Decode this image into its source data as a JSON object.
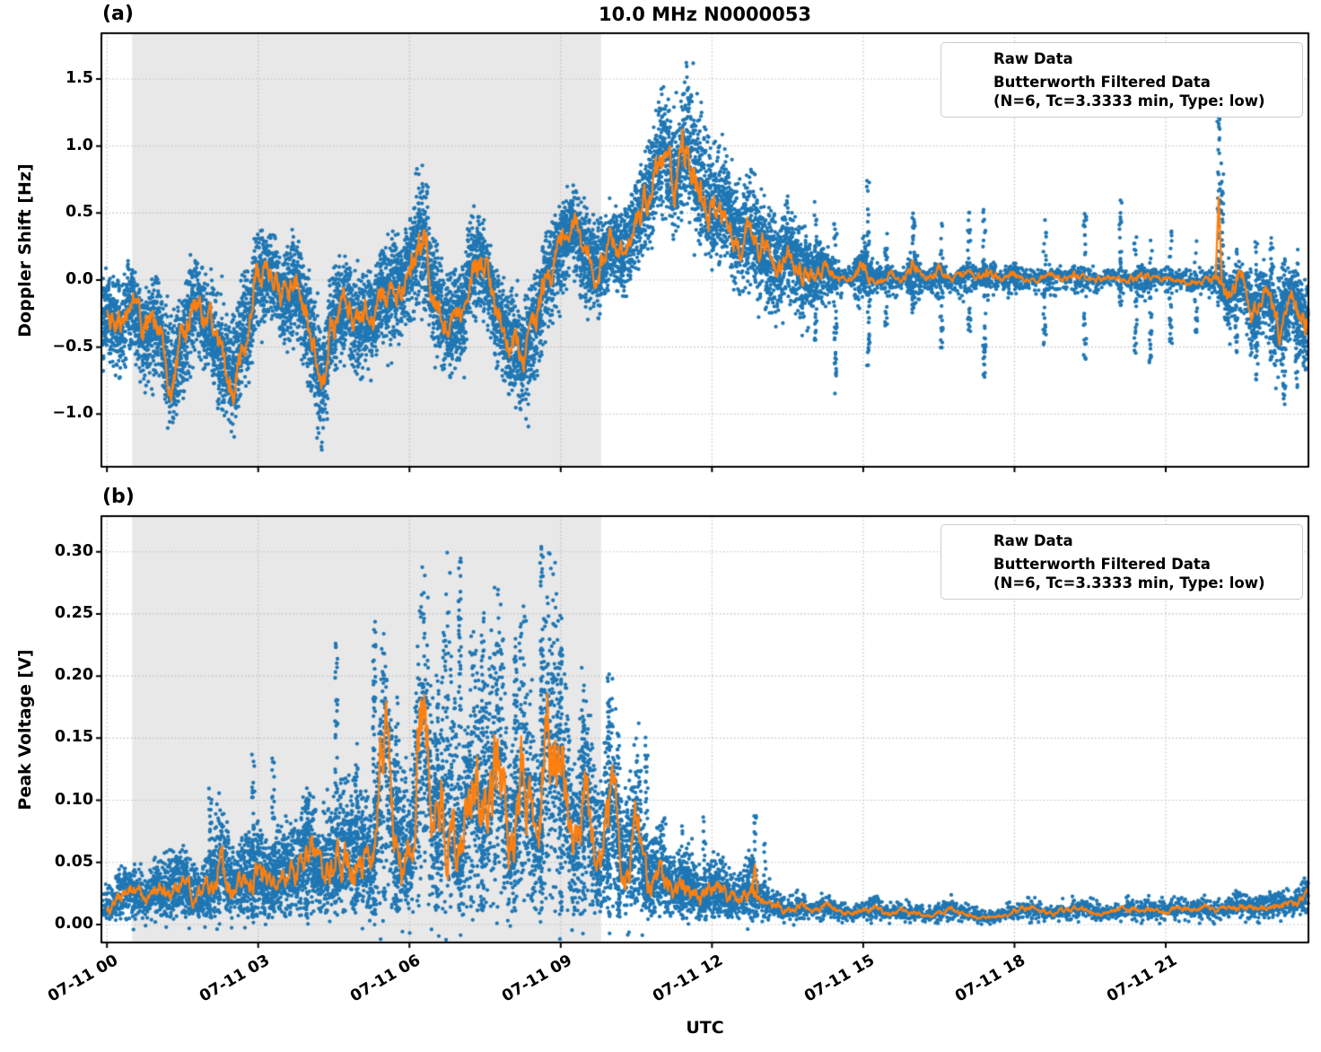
{
  "figure_title": "10.0 MHz N0000053",
  "x_axis": {
    "label": "UTC",
    "ticks": [
      {
        "t": 0,
        "label": "07-11 00"
      },
      {
        "t": 3,
        "label": "07-11 03"
      },
      {
        "t": 6,
        "label": "07-11 06"
      },
      {
        "t": 9,
        "label": "07-11 09"
      },
      {
        "t": 12,
        "label": "07-11 12"
      },
      {
        "t": 15,
        "label": "07-11 15"
      },
      {
        "t": 18,
        "label": "07-11 18"
      },
      {
        "t": 21,
        "label": "07-11 21"
      }
    ],
    "xlim_hours": [
      -0.11,
      23.83
    ],
    "shaded_region": {
      "t_start_h": 0.5,
      "t_end_h": 9.8
    }
  },
  "legend": {
    "raw_label": "Raw Data",
    "filtered_label_line1": "Butterworth Filtered Data",
    "filtered_label_line2": "(N=6, Tc=3.3333 min, Type: low)"
  },
  "colors": {
    "raw": "#1f77b4",
    "filtered": "#ff7f0e",
    "shaded": "#e8e8e8",
    "grid": "#b9b9b9",
    "spine": "#000000"
  },
  "chart_data": [
    {
      "type": "scatter",
      "panel_label": "(a)",
      "title": "10.0 MHz N0000053",
      "ylabel": "Doppler Shift [Hz]",
      "xlabel": "UTC",
      "ylim": [
        -1.393,
        1.842
      ],
      "yticks": [
        1.5,
        1.0,
        0.5,
        0.0,
        -0.5,
        -1.0
      ],
      "ytick_labels": [
        "1.5",
        "1.0",
        "0.5",
        "0.0",
        "−0.5",
        "−1.0"
      ],
      "grid": true,
      "legend_position": "upper right",
      "series_names": [
        "Raw Data",
        "Butterworth Filtered Data (N=6, Tc=3.3333 min, Type: low)"
      ],
      "t_start_h": 0,
      "t_step_h": 0.25,
      "filtered": [
        -0.22,
        -0.35,
        -0.12,
        -0.42,
        -0.3,
        -0.72,
        -0.45,
        -0.18,
        -0.35,
        -0.55,
        -0.74,
        -0.38,
        0.02,
        0.05,
        -0.12,
        -0.02,
        -0.35,
        -0.78,
        -0.28,
        -0.15,
        -0.34,
        -0.25,
        -0.14,
        -0.05,
        0.08,
        0.33,
        -0.12,
        -0.34,
        -0.28,
        0.12,
        0.08,
        -0.26,
        -0.44,
        -0.58,
        -0.28,
        0.05,
        0.26,
        0.44,
        0.18,
        0.08,
        0.28,
        0.2,
        0.42,
        0.62,
        0.93,
        0.75,
        0.95,
        0.68,
        0.46,
        0.55,
        0.3,
        0.36,
        0.22,
        0.1,
        0.2,
        0.08,
        0.04,
        0.1,
        0.02,
        0.01,
        0.12,
        0.01,
        0.04,
        0.0,
        0.1,
        0.0,
        0.06,
        0.01,
        0.04,
        0.02,
        0.05,
        0.01,
        0.05,
        0.0,
        0.01,
        0.03,
        0.01,
        0.04,
        0.0,
        0.01,
        0.02,
        0.0,
        0.04,
        0.01,
        0.02,
        0.0,
        -0.02,
        0.0,
        0.02,
        -0.12,
        0.02,
        -0.25,
        -0.08,
        -0.38,
        -0.12,
        -0.3,
        -0.18
      ],
      "raw_hi": [
        0.1,
        0.02,
        0.18,
        -0.05,
        0.05,
        -0.25,
        -0.05,
        0.22,
        0.05,
        -0.1,
        -0.25,
        0.1,
        0.38,
        0.4,
        0.25,
        0.35,
        0.05,
        -0.3,
        0.1,
        0.2,
        0.05,
        0.1,
        0.25,
        0.35,
        0.45,
        0.92,
        0.3,
        0.05,
        0.1,
        0.5,
        0.45,
        0.1,
        -0.05,
        -0.15,
        0.1,
        0.4,
        0.6,
        0.68,
        0.55,
        0.45,
        0.62,
        0.55,
        0.8,
        1.1,
        1.45,
        1.3,
        1.68,
        1.4,
        1.05,
        1.0,
        0.75,
        0.85,
        0.68,
        0.5,
        0.6,
        0.45,
        0.3,
        0.28,
        0.12,
        0.1,
        0.3,
        0.1,
        0.12,
        0.08,
        0.25,
        0.08,
        0.15,
        0.08,
        0.12,
        0.1,
        0.14,
        0.08,
        0.14,
        0.08,
        0.08,
        0.1,
        0.08,
        0.12,
        0.08,
        0.08,
        0.08,
        0.08,
        0.12,
        0.08,
        0.1,
        0.08,
        0.06,
        0.08,
        0.12,
        0.1,
        0.15,
        0.05,
        0.12,
        0.02,
        0.08,
        0.02,
        0.05
      ],
      "raw_lo": [
        -0.6,
        -0.75,
        -0.5,
        -0.85,
        -0.7,
        -1.15,
        -0.9,
        -0.55,
        -0.75,
        -1.0,
        -1.22,
        -0.85,
        -0.35,
        -0.3,
        -0.5,
        -0.45,
        -0.8,
        -1.27,
        -0.7,
        -0.55,
        -0.75,
        -0.65,
        -0.55,
        -0.45,
        -0.35,
        -0.2,
        -0.55,
        -0.75,
        -0.7,
        -0.3,
        -0.35,
        -0.7,
        -0.9,
        -1.1,
        -0.75,
        -0.4,
        -0.15,
        0.05,
        -0.25,
        -0.3,
        -0.05,
        -0.15,
        0.05,
        0.2,
        0.45,
        0.3,
        0.5,
        0.25,
        0.05,
        0.1,
        -0.15,
        -0.05,
        -0.2,
        -0.35,
        -0.15,
        -0.3,
        -0.25,
        -0.2,
        -0.12,
        -0.1,
        -0.25,
        -0.1,
        -0.12,
        -0.08,
        -0.2,
        -0.08,
        -0.15,
        -0.08,
        -0.14,
        -0.12,
        -0.16,
        -0.08,
        -0.12,
        -0.08,
        -0.08,
        -0.1,
        -0.08,
        -0.1,
        -0.08,
        -0.08,
        -0.08,
        -0.08,
        -0.14,
        -0.08,
        -0.1,
        -0.08,
        -0.1,
        -0.08,
        -0.12,
        -0.4,
        -0.25,
        -0.55,
        -0.35,
        -0.75,
        -0.45,
        -0.7,
        -0.5
      ],
      "spikes": [
        [
          14.05,
          -0.45,
          0.65
        ],
        [
          14.45,
          -0.85,
          0.45
        ],
        [
          15.1,
          -0.65,
          0.75
        ],
        [
          15.45,
          -0.35,
          0.35
        ],
        [
          16.0,
          -0.25,
          0.55
        ],
        [
          16.55,
          -0.55,
          0.45
        ],
        [
          17.1,
          -0.45,
          0.55
        ],
        [
          17.4,
          -0.75,
          0.6
        ],
        [
          18.6,
          -0.5,
          0.45
        ],
        [
          19.4,
          -0.6,
          0.5
        ],
        [
          20.1,
          -0.2,
          0.67
        ],
        [
          20.4,
          -0.55,
          0.35
        ],
        [
          20.7,
          -0.65,
          0.3
        ],
        [
          21.1,
          -0.5,
          0.55
        ],
        [
          21.6,
          -0.4,
          0.3
        ],
        [
          22.05,
          -0.2,
          1.22
        ],
        [
          22.12,
          -0.15,
          0.9
        ],
        [
          22.4,
          -0.6,
          0.25
        ],
        [
          22.8,
          -0.75,
          0.3
        ],
        [
          23.1,
          -0.6,
          0.45
        ],
        [
          23.35,
          -0.95,
          0.2
        ],
        [
          23.6,
          -0.8,
          0.25
        ]
      ],
      "line_spikes": [
        [
          22.05,
          0.62
        ]
      ]
    },
    {
      "type": "scatter",
      "panel_label": "(b)",
      "ylabel": "Peak Voltage [V]",
      "xlabel": "UTC",
      "ylim": [
        -0.0145,
        0.3287
      ],
      "yticks": [
        0.3,
        0.25,
        0.2,
        0.15,
        0.1,
        0.05,
        0.0
      ],
      "ytick_labels": [
        "0.30",
        "0.25",
        "0.20",
        "0.15",
        "0.10",
        "0.05",
        "0.00"
      ],
      "grid": true,
      "legend_position": "upper right",
      "series_names": [
        "Raw Data",
        "Butterworth Filtered Data (N=6, Tc=3.3333 min, Type: low)"
      ],
      "t_start_h": 0,
      "t_step_h": 0.25,
      "filtered": [
        0.012,
        0.02,
        0.028,
        0.018,
        0.03,
        0.026,
        0.032,
        0.022,
        0.03,
        0.045,
        0.028,
        0.035,
        0.04,
        0.034,
        0.045,
        0.04,
        0.062,
        0.04,
        0.05,
        0.055,
        0.052,
        0.048,
        0.15,
        0.06,
        0.05,
        0.165,
        0.08,
        0.1,
        0.058,
        0.12,
        0.095,
        0.135,
        0.06,
        0.125,
        0.068,
        0.15,
        0.13,
        0.058,
        0.115,
        0.048,
        0.095,
        0.042,
        0.072,
        0.028,
        0.042,
        0.024,
        0.032,
        0.02,
        0.028,
        0.024,
        0.018,
        0.028,
        0.02,
        0.014,
        0.012,
        0.014,
        0.011,
        0.014,
        0.011,
        0.009,
        0.011,
        0.014,
        0.009,
        0.011,
        0.009,
        0.007,
        0.011,
        0.013,
        0.009,
        0.007,
        0.005,
        0.007,
        0.011,
        0.013,
        0.011,
        0.009,
        0.011,
        0.013,
        0.011,
        0.009,
        0.011,
        0.013,
        0.011,
        0.013,
        0.011,
        0.013,
        0.011,
        0.013,
        0.011,
        0.013,
        0.015,
        0.013,
        0.015,
        0.017,
        0.015,
        0.022,
        0.025
      ],
      "raw_hi": [
        0.035,
        0.045,
        0.05,
        0.04,
        0.055,
        0.06,
        0.065,
        0.05,
        0.06,
        0.11,
        0.06,
        0.075,
        0.085,
        0.07,
        0.09,
        0.08,
        0.11,
        0.09,
        0.105,
        0.13,
        0.115,
        0.105,
        0.24,
        0.13,
        0.12,
        0.3,
        0.16,
        0.3,
        0.13,
        0.24,
        0.2,
        0.285,
        0.14,
        0.26,
        0.16,
        0.31,
        0.26,
        0.13,
        0.21,
        0.11,
        0.205,
        0.1,
        0.15,
        0.07,
        0.09,
        0.055,
        0.07,
        0.045,
        0.06,
        0.055,
        0.04,
        0.06,
        0.035,
        0.03,
        0.022,
        0.025,
        0.02,
        0.024,
        0.02,
        0.016,
        0.02,
        0.024,
        0.016,
        0.019,
        0.016,
        0.013,
        0.019,
        0.022,
        0.016,
        0.013,
        0.01,
        0.013,
        0.019,
        0.022,
        0.019,
        0.016,
        0.019,
        0.022,
        0.019,
        0.016,
        0.019,
        0.022,
        0.019,
        0.022,
        0.019,
        0.022,
        0.019,
        0.022,
        0.019,
        0.022,
        0.026,
        0.023,
        0.026,
        0.03,
        0.027,
        0.038,
        0.042
      ],
      "raw_lo": [
        0.002,
        0.003,
        0.004,
        0.003,
        0.004,
        0.004,
        0.005,
        0.004,
        0.004,
        0.006,
        0.004,
        0.005,
        0.006,
        0.005,
        0.006,
        0.006,
        0.008,
        0.006,
        0.007,
        0.008,
        0.007,
        0.007,
        0.01,
        0.008,
        0.007,
        0.012,
        0.008,
        0.01,
        0.007,
        0.01,
        0.009,
        0.011,
        0.007,
        0.01,
        0.007,
        0.011,
        0.01,
        0.006,
        0.009,
        0.006,
        0.008,
        0.005,
        0.007,
        0.004,
        0.005,
        0.004,
        0.004,
        0.003,
        0.004,
        0.004,
        0.003,
        0.004,
        0.006,
        0.003,
        0.003,
        0.003,
        0.003,
        0.004,
        0.003,
        0.002,
        0.003,
        0.004,
        0.002,
        0.003,
        0.002,
        0.002,
        0.003,
        0.004,
        0.002,
        0.002,
        0.001,
        0.002,
        0.003,
        0.004,
        0.003,
        0.002,
        0.003,
        0.004,
        0.003,
        0.002,
        0.003,
        0.004,
        0.003,
        0.004,
        0.003,
        0.004,
        0.003,
        0.004,
        0.003,
        0.004,
        0.005,
        0.004,
        0.005,
        0.006,
        0.005,
        0.008,
        0.008
      ],
      "spikes": [
        [
          2.05,
          0.004,
          0.112
        ],
        [
          2.9,
          0.006,
          0.145
        ],
        [
          3.3,
          0.005,
          0.135
        ],
        [
          3.95,
          0.005,
          0.112
        ],
        [
          4.55,
          0.006,
          0.228
        ],
        [
          4.95,
          0.006,
          0.15
        ],
        [
          5.3,
          0.008,
          0.245
        ],
        [
          5.75,
          0.008,
          0.185
        ],
        [
          6.55,
          0.008,
          0.205
        ],
        [
          7.0,
          0.008,
          0.302
        ],
        [
          7.45,
          0.008,
          0.255
        ],
        [
          8.1,
          0.007,
          0.23
        ],
        [
          8.62,
          0.008,
          0.312
        ],
        [
          9.0,
          0.008,
          0.225
        ],
        [
          9.45,
          0.007,
          0.165
        ],
        [
          9.95,
          0.006,
          0.21
        ],
        [
          10.15,
          0.006,
          0.158
        ],
        [
          10.7,
          0.005,
          0.152
        ],
        [
          11.4,
          0.004,
          0.085
        ],
        [
          11.85,
          0.004,
          0.088
        ],
        [
          12.85,
          0.005,
          0.105
        ],
        [
          13.05,
          0.004,
          0.068
        ]
      ],
      "line_spikes": [
        [
          12.85,
          0.048
        ]
      ]
    }
  ]
}
